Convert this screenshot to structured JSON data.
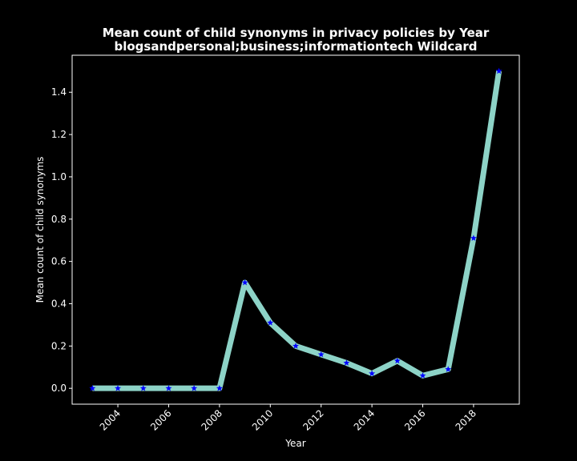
{
  "chart_data": {
    "type": "line",
    "title": "Mean count of child synonyms in privacy policies by Year",
    "subtitle": "blogsandpersonal;business;informationtech Wildcard",
    "xlabel": "Year",
    "ylabel": "Mean count of child synonyms",
    "x": [
      2003,
      2004,
      2005,
      2006,
      2007,
      2008,
      2009,
      2010,
      2011,
      2012,
      2013,
      2014,
      2015,
      2016,
      2017,
      2018,
      2019
    ],
    "series": [
      {
        "values": [
          0.0,
          0.0,
          0.0,
          0.0,
          0.0,
          0.0,
          0.5,
          0.31,
          0.2,
          0.16,
          0.12,
          0.07,
          0.13,
          0.06,
          0.09,
          0.71,
          1.5
        ]
      }
    ],
    "xlim": [
      2002.2,
      2019.8
    ],
    "ylim": [
      -0.075,
      1.575
    ],
    "xticks": [
      "2004",
      "2006",
      "2008",
      "2010",
      "2012",
      "2014",
      "2016",
      "2018"
    ],
    "xtick_values": [
      2004,
      2006,
      2008,
      2010,
      2012,
      2014,
      2016,
      2018
    ],
    "yticks": [
      "0.0",
      "0.2",
      "0.4",
      "0.6",
      "0.8",
      "1.0",
      "1.2",
      "1.4"
    ],
    "ytick_values": [
      0.0,
      0.2,
      0.4,
      0.6,
      0.8,
      1.0,
      1.2,
      1.4
    ],
    "grid": false,
    "colors": {
      "background": "#000000",
      "line": "#8dd3c7",
      "marker": "#0000ff",
      "axes": "#ffffff",
      "text": "#ffffff"
    },
    "marker": "star"
  }
}
